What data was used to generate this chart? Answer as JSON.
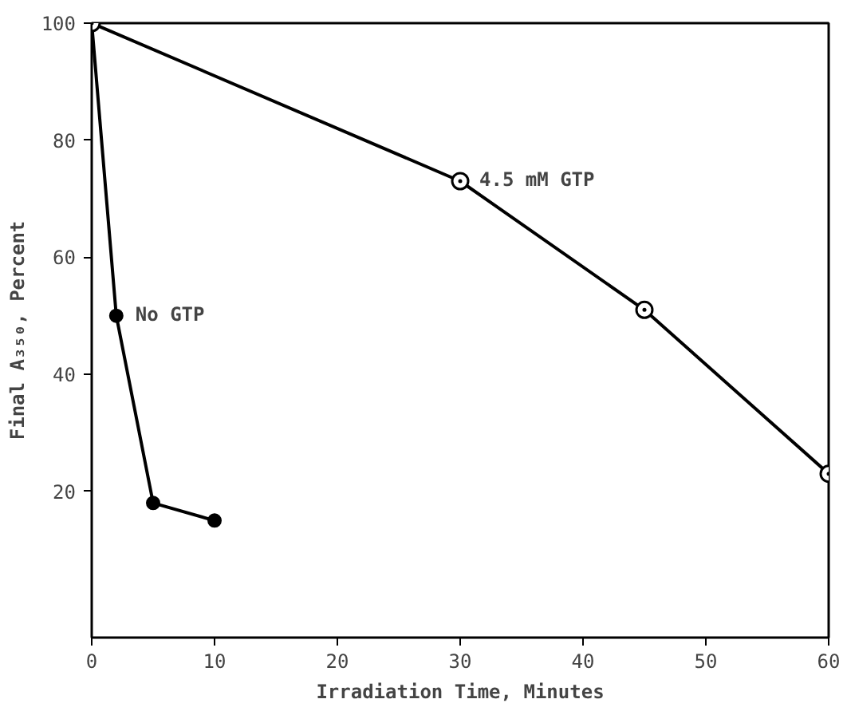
{
  "chart_data": {
    "type": "line",
    "xlabel": "Irradiation Time, Minutes",
    "ylabel": "Final A₃₅₀, Percent",
    "xlim": [
      0,
      60
    ],
    "ylim": [
      -5,
      100
    ],
    "xticks": [
      0,
      10,
      20,
      30,
      40,
      50,
      60
    ],
    "yticks": [
      20,
      40,
      60,
      80,
      100
    ],
    "grid": false,
    "legend": false,
    "line_style": "solid",
    "series": [
      {
        "name": "No GTP",
        "color": "#000000",
        "marker": "circle",
        "x": [
          0,
          2,
          5,
          10
        ],
        "values": [
          100,
          50,
          18,
          15
        ]
      },
      {
        "name": "4.5 mM GTP",
        "color": "#000000",
        "marker": "circle_dot",
        "x": [
          0,
          30,
          45,
          60
        ],
        "values": [
          100,
          73,
          51,
          23
        ]
      }
    ]
  }
}
